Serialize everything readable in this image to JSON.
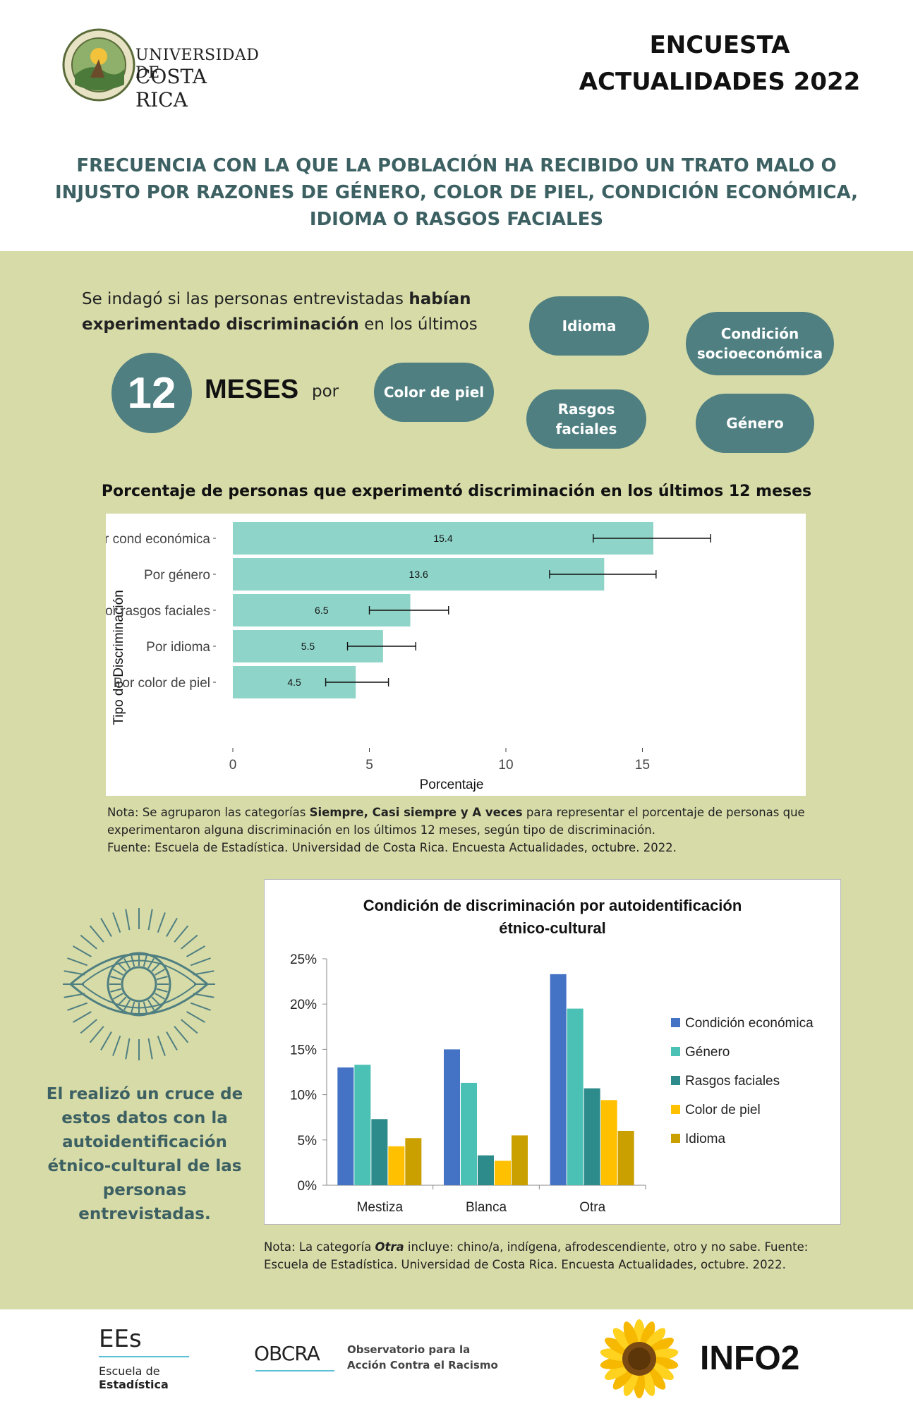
{
  "header": {
    "logo_text_line1": "UNIVERSIDAD DE",
    "logo_text_line2": "COSTA RICA",
    "seal_text": "UNIVERSIDAD DE COSTA RICA",
    "survey_title_line1": "ENCUESTA",
    "survey_title_line2": "ACTUALIDADES 2022"
  },
  "main_title": {
    "line1": "FRECUENCIA CON LA QUE LA POBLACIÓN HA RECIBIDO UN TRATO MALO O",
    "line2": "INJUSTO POR RAZONES DE GÉNERO, COLOR DE PIEL, CONDICIÓN ECONÓMICA,",
    "line3": "IDIOMA O RASGOS FACIALES"
  },
  "intro": {
    "t1": "Se indagó si las personas entrevistadas ",
    "t1_bold": "habían",
    "t2_bold": "experimentado discriminación",
    "t2": " en los últimos",
    "number": "12",
    "meses": "MESES",
    "por": "por"
  },
  "pills": {
    "idioma": "Idioma",
    "condicion_l1": "Condición",
    "condicion_l2": "socioeconómica",
    "color_piel": "Color de piel",
    "rasgos_l1": "Rasgos",
    "rasgos_l2": "faciales",
    "genero": "Género"
  },
  "chart1_title": "Porcentaje de personas que experimentó discriminación en los últimos 12 meses",
  "note1": {
    "pre": "Nota: Se agruparon las categorías ",
    "bold": "Siempre, Casi siempre y A veces",
    "post": " para representar el porcentaje de personas que",
    "line2": "experimentaron alguna discriminación en los últimos 12 meses, según tipo de discriminación.",
    "line3": "Fuente: Escuela de Estadística. Universidad de Costa Rica. Encuesta Actualidades, octubre. 2022."
  },
  "side_text": {
    "l1": "El realizó un cruce de",
    "l2": "estos datos con la",
    "l3": "autoidentificación",
    "l4": "étnico-cultural de las",
    "l5": "personas",
    "l6": "entrevistadas."
  },
  "note2": {
    "pre": "Nota: La categoría ",
    "bold": "Otra",
    "post": " incluye:  chino/a, indígena, afrodescendiente, otro y no sabe. Fuente:",
    "line2": "Escuela de Estadística. Universidad de Costa Rica. Encuesta Actualidades, octubre. 2022."
  },
  "footer": {
    "ees": "EEs",
    "escuela_l1": "Escuela de",
    "escuela_l2": "Estadística",
    "obcra": "OBCRA",
    "obs_l1": "Observatorio para la",
    "obs_l2": "Acción Contra el Racismo",
    "info": "INFO2"
  },
  "colors": {
    "band": "#d7dba8",
    "pill": "#4f7f81",
    "title_teal": "#3d6163",
    "bar1": "#8fd4c8",
    "ce": "#4472c4",
    "genero": "#4bc0b4",
    "rasgos": "#2e8b8b",
    "piel": "#ffc000",
    "idioma": "#c9a000"
  },
  "chart_data": [
    {
      "type": "bar",
      "orientation": "horizontal",
      "categories": [
        "Por cond económica",
        "Por género",
        "Por rasgos faciales",
        "Por idioma",
        "Por color de piel"
      ],
      "values": [
        15.4,
        13.6,
        6.5,
        5.5,
        4.5
      ],
      "error_low": [
        13.2,
        11.6,
        5.0,
        4.2,
        3.4
      ],
      "error_high": [
        17.5,
        15.5,
        7.9,
        6.7,
        5.7
      ],
      "value_labels": [
        "15.4",
        "13.6",
        "6.5",
        "5.5",
        "4.5"
      ],
      "xlabel": "Porcentaje",
      "ylabel": "Tipo de Discriminación",
      "xlim": [
        0,
        18
      ],
      "xticks": [
        "0",
        "5",
        "10",
        "15"
      ],
      "grid": false
    },
    {
      "type": "bar",
      "title_l1": "Condición  de discriminación  por autoidentificación",
      "title_l2": "étnico-cultural",
      "categories": [
        "Mestiza",
        "Blanca",
        "Otra"
      ],
      "series": [
        {
          "name": "Condición económica",
          "values": [
            13.0,
            15.0,
            23.3
          ]
        },
        {
          "name": "Género",
          "values": [
            13.3,
            11.3,
            19.5
          ]
        },
        {
          "name": "Rasgos faciales",
          "values": [
            7.3,
            3.3,
            10.7
          ]
        },
        {
          "name": "Color de piel",
          "values": [
            4.3,
            2.7,
            9.4
          ]
        },
        {
          "name": "Idioma",
          "values": [
            5.2,
            5.5,
            6.0
          ]
        }
      ],
      "ylim": [
        0,
        25
      ],
      "yticks": [
        "0%",
        "5%",
        "10%",
        "15%",
        "20%",
        "25%"
      ],
      "legend": "right",
      "grid": false
    }
  ]
}
